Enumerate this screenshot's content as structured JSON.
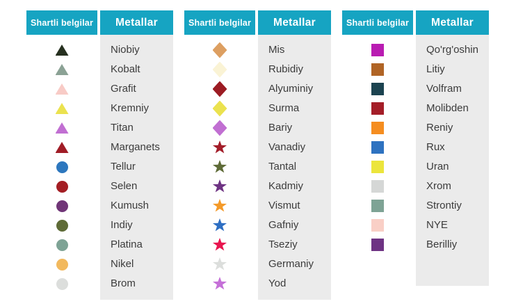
{
  "colors": {
    "header_bg": "#16a4c2",
    "header_text": "#ffffff",
    "names_bg": "#ebebeb",
    "label_text": "#3c3c3c",
    "page_bg": "#ffffff"
  },
  "groups": [
    {
      "header_symbols": "Shartli belgilar",
      "header_metals": "Metallar",
      "items": [
        {
          "shape": "triangle",
          "color": "#26301f",
          "metal": "Niobiy"
        },
        {
          "shape": "triangle",
          "color": "#8ba295",
          "metal": "Kobalt"
        },
        {
          "shape": "triangle",
          "color": "#f8cbc6",
          "metal": "Grafit"
        },
        {
          "shape": "triangle",
          "color": "#ebe24f",
          "metal": "Kremniy"
        },
        {
          "shape": "triangle",
          "color": "#c16fd2",
          "metal": "Titan"
        },
        {
          "shape": "triangle",
          "color": "#a01c26",
          "metal": "Marganets"
        },
        {
          "shape": "circle",
          "color": "#2d77be",
          "metal": "Tellur"
        },
        {
          "shape": "circle",
          "color": "#a41e24",
          "metal": "Selen"
        },
        {
          "shape": "circle",
          "color": "#703577",
          "metal": "Kumush"
        },
        {
          "shape": "circle",
          "color": "#5e6b37",
          "metal": "Indiy"
        },
        {
          "shape": "circle",
          "color": "#7ea395",
          "metal": "Platina"
        },
        {
          "shape": "circle",
          "color": "#f2b95e",
          "metal": "Nikel"
        },
        {
          "shape": "circle",
          "color": "#dcdedc",
          "metal": "Brom"
        }
      ]
    },
    {
      "header_symbols": "Shartli belgilar",
      "header_metals": "Metallar",
      "items": [
        {
          "shape": "diamond",
          "color": "#dd9f61",
          "metal": "Mis"
        },
        {
          "shape": "diamond",
          "color": "#faf3d5",
          "metal": "Rubidiy"
        },
        {
          "shape": "diamond",
          "color": "#9c1c23",
          "metal": "Alyuminiy"
        },
        {
          "shape": "diamond",
          "color": "#ebe24f",
          "metal": "Surma"
        },
        {
          "shape": "diamond",
          "color": "#c16fd2",
          "metal": "Bariy"
        },
        {
          "shape": "star",
          "color": "#a31d29",
          "metal": "Vanadiy"
        },
        {
          "shape": "star",
          "color": "#5e6b37",
          "metal": "Tantal"
        },
        {
          "shape": "star",
          "color": "#6e3383",
          "metal": "Kadmiy"
        },
        {
          "shape": "star",
          "color": "#f49a29",
          "metal": "Vismut"
        },
        {
          "shape": "star",
          "color": "#2e6fc3",
          "metal": "Gafniy"
        },
        {
          "shape": "star",
          "color": "#e8164f",
          "metal": "Tseziy"
        },
        {
          "shape": "star",
          "color": "#dcdedc",
          "metal": "Germaniy"
        },
        {
          "shape": "star",
          "color": "#c570d8",
          "metal": "Yod"
        }
      ]
    },
    {
      "header_symbols": "Shartli belgilar",
      "header_metals": "Metallar",
      "items": [
        {
          "shape": "square",
          "color": "#b91cb2",
          "metal": "Qo'rg'oshin"
        },
        {
          "shape": "square",
          "color": "#b06425",
          "metal": "Litiy"
        },
        {
          "shape": "square",
          "color": "#1c4350",
          "metal": "Volfram"
        },
        {
          "shape": "square",
          "color": "#a41e28",
          "metal": "Molibden"
        },
        {
          "shape": "square",
          "color": "#f58d20",
          "metal": "Reniy"
        },
        {
          "shape": "square",
          "color": "#2e72c0",
          "metal": "Rux"
        },
        {
          "shape": "square",
          "color": "#ece53c",
          "metal": "Uran"
        },
        {
          "shape": "square",
          "color": "#d5d7d6",
          "metal": "Xrom"
        },
        {
          "shape": "square",
          "color": "#7ea395",
          "metal": "Strontiy"
        },
        {
          "shape": "square",
          "color": "#f9cfc6",
          "metal": "NYE"
        },
        {
          "shape": "square",
          "color": "#6e3383",
          "metal": "Berilliy"
        }
      ]
    }
  ]
}
